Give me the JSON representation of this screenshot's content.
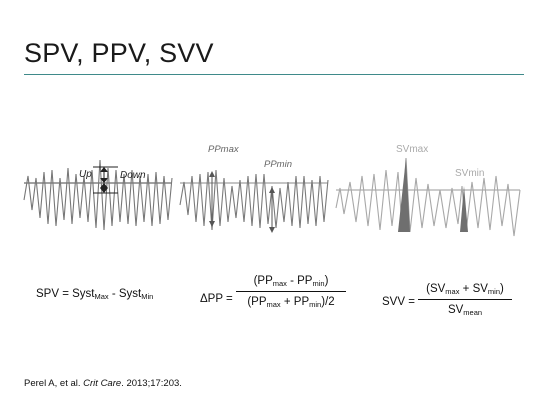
{
  "slide": {
    "title": "SPV, PPV, SVV"
  },
  "panels": {
    "spv": {
      "label_up": "Up",
      "label_down": "Down"
    },
    "ppv": {
      "label_ppmax": "PPmax",
      "label_ppmin": "PPmin"
    },
    "svv": {
      "label_svmax": "SVmax",
      "label_svmin": "SVmin"
    }
  },
  "formulas": {
    "spv": {
      "lhs": "SPV = Syst",
      "sub1": "Max",
      "mid": " - Syst",
      "sub2": "Min"
    },
    "ppv": {
      "lhs": "ΔPP =",
      "num_a": "(PP",
      "num_sub1": "max",
      "num_b": " - PP",
      "num_sub2": "min",
      "num_c": ")",
      "den_a": "(PP",
      "den_sub1": "max",
      "den_b": " + PP",
      "den_sub2": "min",
      "den_c": ")/2"
    },
    "svv": {
      "lhs": "SVV =",
      "num_a": "(SV",
      "num_sub1": "max",
      "num_b": " + SV",
      "num_sub2": "min",
      "num_c": ")",
      "den_a": "SV",
      "den_sub1": "mean"
    }
  },
  "citation": {
    "authors": "Perel A, et al. ",
    "journal": "Crit Care",
    "rest": ". 2013;17:203."
  },
  "colors": {
    "accent_rule": "#3f8a8a",
    "wave": "#7a7a7a",
    "wave_light": "#a8a8a8",
    "fill": "#6f6f6f"
  }
}
